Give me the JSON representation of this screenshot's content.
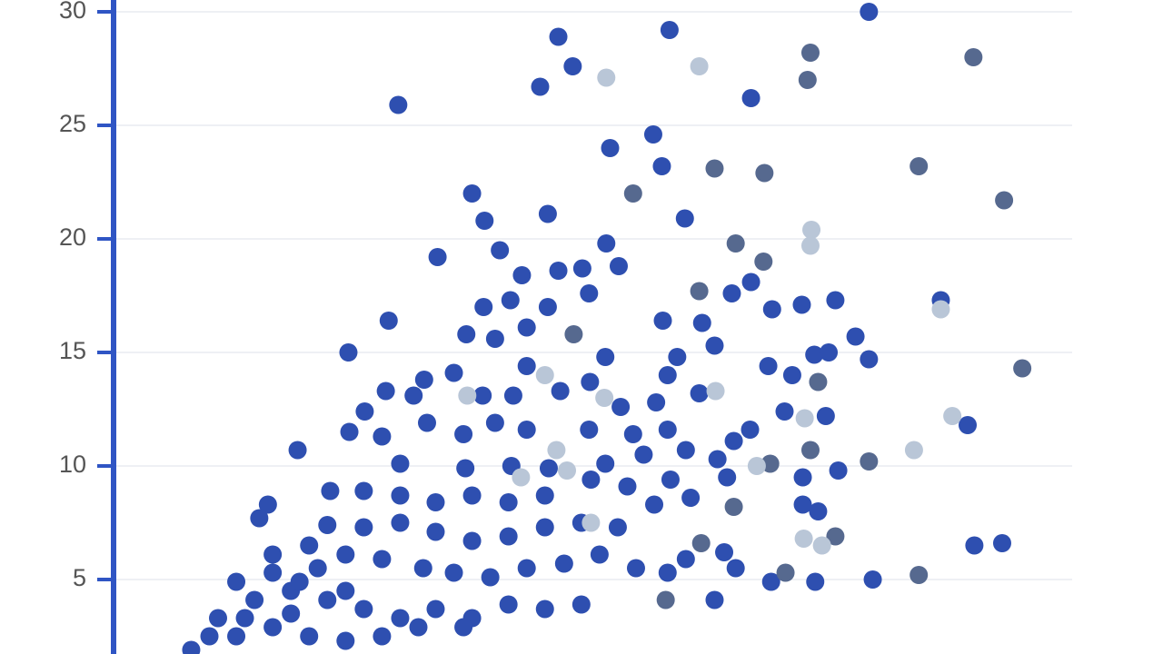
{
  "chart_data": {
    "type": "scatter",
    "ylim": [
      1.72,
      30.52
    ],
    "yticks": [
      5,
      10,
      15,
      20,
      25,
      30
    ],
    "xlim": [
      0,
      100
    ],
    "grid": true,
    "axis_color": "#2f55c4",
    "series": [
      {
        "color": "#2e4fb0",
        "x": [
          29.7,
          46.4,
          47.9,
          44.5,
          58.0,
          66.5,
          78.8,
          56.3,
          51.8,
          57.2,
          37.4,
          38.7,
          45.3,
          59.6,
          51.4,
          33.8,
          40.3,
          42.6,
          46.4,
          48.9,
          52.7,
          49.6,
          64.5,
          66.5,
          71.8,
          75.3,
          68.7,
          86.3,
          28.7,
          24.5,
          38.6,
          41.4,
          45.3,
          36.8,
          43.1,
          39.8,
          57.3,
          61.4,
          62.7,
          77.4,
          78.8,
          73.1,
          74.6,
          89.1,
          51.3,
          43.1,
          35.5,
          32.4,
          28.4,
          31.3,
          26.2,
          38.5,
          41.7,
          46.6,
          49.7,
          58.8,
          57.8,
          61.1,
          68.3,
          70.8,
          56.6,
          52.9,
          70.0,
          74.3,
          66.4,
          64.7,
          57.8,
          54.2,
          49.6,
          43.1,
          39.8,
          36.5,
          32.7,
          28.0,
          24.6,
          19.2,
          29.9,
          36.7,
          41.5,
          45.4,
          51.3,
          55.3,
          59.7,
          63.0,
          75.6,
          71.9,
          64.0,
          58.1,
          53.6,
          49.8,
          45.0,
          41.2,
          37.4,
          33.6,
          29.9,
          26.1,
          22.6,
          71.9,
          73.5,
          60.2,
          56.4,
          52.6,
          48.8,
          45.0,
          41.2,
          37.4,
          33.6,
          29.9,
          26.1,
          22.3,
          16.1,
          15.2,
          63.7,
          92.7,
          89.8,
          59.7,
          64.9,
          79.2,
          73.2,
          68.6,
          62.7,
          57.8,
          54.5,
          50.7,
          47.0,
          43.1,
          39.3,
          35.5,
          32.3,
          28.0,
          24.2,
          20.4,
          16.6,
          12.8,
          48.8,
          45.0,
          41.2,
          37.4,
          33.6,
          29.9,
          26.1,
          22.3,
          18.5,
          14.7,
          10.9,
          8.1,
          10.0,
          12.8,
          16.6,
          20.4,
          24.2,
          28.0,
          31.8,
          36.5,
          16.6,
          19.4,
          21.3,
          18.5,
          13.7,
          24.2
        ],
        "values": [
          25.9,
          28.9,
          27.6,
          26.7,
          29.2,
          26.2,
          30.0,
          24.6,
          24.0,
          23.2,
          22.0,
          20.8,
          21.1,
          20.9,
          19.8,
          19.2,
          19.5,
          18.4,
          18.6,
          18.7,
          18.8,
          17.6,
          17.6,
          18.1,
          17.1,
          17.3,
          16.9,
          17.3,
          16.4,
          15.0,
          17.0,
          17.3,
          17.0,
          15.8,
          16.1,
          15.6,
          16.4,
          16.3,
          15.3,
          15.7,
          14.7,
          14.9,
          15.0,
          11.8,
          14.8,
          14.4,
          14.1,
          13.8,
          13.3,
          13.1,
          12.4,
          13.1,
          13.1,
          13.3,
          13.7,
          14.8,
          14.0,
          13.2,
          14.4,
          14.0,
          12.8,
          12.6,
          12.4,
          12.2,
          11.6,
          11.1,
          11.6,
          11.4,
          11.6,
          11.6,
          11.9,
          11.4,
          11.9,
          11.3,
          11.5,
          10.7,
          10.1,
          9.9,
          10.0,
          9.9,
          10.1,
          10.5,
          10.7,
          10.3,
          9.8,
          9.5,
          9.5,
          9.4,
          9.1,
          9.4,
          8.7,
          8.4,
          8.7,
          8.4,
          8.7,
          8.9,
          8.9,
          8.3,
          8.0,
          8.6,
          8.3,
          7.3,
          7.5,
          7.3,
          6.9,
          6.7,
          7.1,
          7.5,
          7.3,
          7.4,
          8.3,
          7.7,
          6.2,
          6.6,
          6.5,
          5.9,
          5.5,
          5.0,
          4.9,
          4.9,
          4.1,
          5.3,
          5.5,
          6.1,
          5.7,
          5.5,
          5.1,
          5.3,
          5.5,
          5.9,
          6.1,
          6.5,
          6.1,
          4.9,
          3.9,
          3.7,
          3.9,
          3.3,
          3.7,
          3.3,
          3.7,
          4.1,
          4.5,
          4.1,
          3.3,
          1.9,
          2.5,
          2.5,
          2.9,
          2.5,
          2.3,
          2.5,
          2.9,
          2.9,
          5.3,
          4.9,
          5.5,
          3.5,
          3.3,
          4.5
        ]
      },
      {
        "color": "#56698f",
        "x": [
          89.7,
          72.7,
          72.4,
          62.7,
          67.9,
          84.0,
          54.2,
          92.9,
          64.9,
          67.8,
          61.1,
          48.0,
          73.5,
          94.8,
          72.7,
          78.8,
          68.5,
          64.7,
          75.3,
          61.3,
          84.0,
          70.1,
          57.6
        ],
        "values": [
          28.0,
          28.2,
          27.0,
          23.1,
          22.9,
          23.2,
          22.0,
          21.7,
          19.8,
          19.0,
          17.7,
          15.8,
          13.7,
          14.3,
          10.7,
          10.2,
          10.1,
          8.2,
          6.9,
          6.6,
          5.2,
          5.3,
          4.1
        ]
      },
      {
        "color": "#b9c6d7",
        "x": [
          51.4,
          61.1,
          72.8,
          72.7,
          86.3,
          45.0,
          36.9,
          51.2,
          62.8,
          72.1,
          87.5,
          83.5,
          67.1,
          46.2,
          47.3,
          42.5,
          72.0,
          73.9,
          49.8
        ],
        "values": [
          27.1,
          27.6,
          20.4,
          19.7,
          16.9,
          14.0,
          13.1,
          13.0,
          13.3,
          12.1,
          12.2,
          10.7,
          10.0,
          10.7,
          9.8,
          9.5,
          6.8,
          6.5,
          7.5
        ]
      }
    ]
  }
}
